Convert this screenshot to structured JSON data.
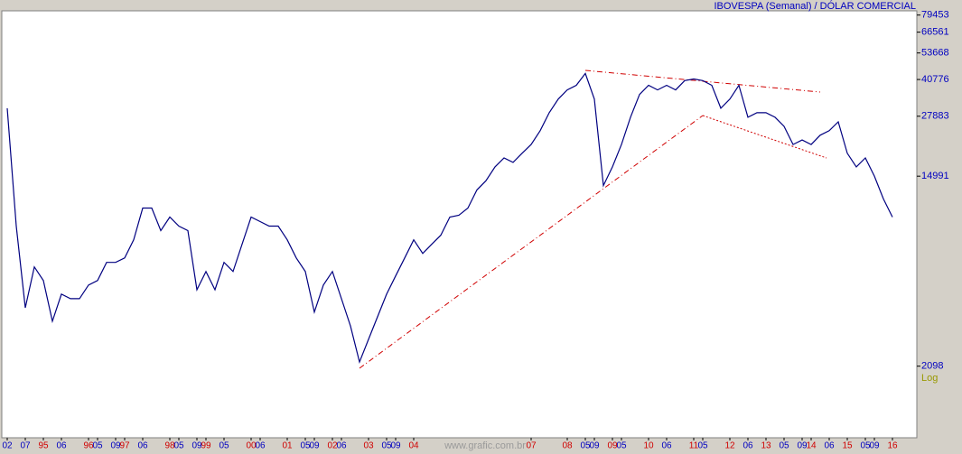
{
  "chart_data": {
    "type": "line",
    "title": "IBOVESPA (Semanal) / DÓLAR COMERCIAL",
    "scale_label": "Log",
    "watermark": "www.grafic.com.br",
    "log_scale": true,
    "grid": false,
    "ylim": [
      1000,
      83000
    ],
    "yticks": [
      79453,
      66561,
      53668,
      40776,
      27883,
      14991,
      2098
    ],
    "categories": [
      "02",
      null,
      "07",
      null,
      "95",
      null,
      "06",
      null,
      null,
      "96",
      "05",
      null,
      "09",
      "97",
      null,
      "06",
      null,
      null,
      "98",
      "05",
      null,
      "09",
      "99",
      null,
      "05",
      null,
      null,
      "00",
      "06",
      null,
      null,
      "01",
      null,
      "05",
      "09",
      null,
      "02",
      "06",
      null,
      null,
      "03",
      null,
      "05",
      "09",
      null,
      "04",
      null,
      null,
      null,
      null,
      null,
      null,
      null,
      null,
      null,
      null,
      null,
      null,
      "07",
      null,
      null,
      null,
      "08",
      null,
      "05",
      "09",
      null,
      "09",
      "05",
      null,
      null,
      "10",
      null,
      "06",
      null,
      null,
      "11",
      "05",
      null,
      null,
      "12",
      null,
      "06",
      null,
      "13",
      null,
      "05",
      null,
      "09",
      "14",
      null,
      "06",
      null,
      "15",
      null,
      "05",
      "09",
      null,
      "16"
    ],
    "category_colors": [
      "#0000c0",
      null,
      "#0000c0",
      null,
      "#d00000",
      null,
      "#0000c0",
      null,
      null,
      "#d00000",
      "#0000c0",
      null,
      "#0000c0",
      "#d00000",
      null,
      "#0000c0",
      null,
      null,
      "#d00000",
      "#0000c0",
      null,
      "#0000c0",
      "#d00000",
      null,
      "#0000c0",
      null,
      null,
      "#d00000",
      "#0000c0",
      null,
      null,
      "#d00000",
      null,
      "#0000c0",
      "#0000c0",
      null,
      "#d00000",
      "#0000c0",
      null,
      null,
      "#d00000",
      null,
      "#0000c0",
      "#0000c0",
      null,
      "#d00000",
      null,
      null,
      null,
      null,
      null,
      null,
      null,
      null,
      null,
      null,
      null,
      null,
      "#d00000",
      null,
      null,
      null,
      "#d00000",
      null,
      "#0000c0",
      "#0000c0",
      null,
      "#d00000",
      "#0000c0",
      null,
      null,
      "#d00000",
      null,
      "#0000c0",
      null,
      null,
      "#d00000",
      "#0000c0",
      null,
      null,
      "#d00000",
      null,
      "#0000c0",
      null,
      "#d00000",
      null,
      "#0000c0",
      null,
      "#0000c0",
      "#d00000",
      null,
      "#0000c0",
      null,
      "#d00000",
      null,
      "#0000c0",
      "#0000c0",
      null,
      "#d00000"
    ],
    "series": [
      {
        "name": "IBOVESPA / DÓLAR",
        "color": "#000080",
        "values": [
          30300,
          8940,
          3840,
          5860,
          5090,
          3340,
          4420,
          4220,
          4220,
          4860,
          5090,
          6140,
          6140,
          6430,
          7760,
          10780,
          10780,
          8530,
          9820,
          8940,
          8530,
          4630,
          5590,
          4630,
          6140,
          5590,
          7410,
          9820,
          9370,
          8940,
          8940,
          7760,
          6430,
          5590,
          3670,
          4860,
          5590,
          4220,
          3180,
          2190,
          2770,
          3500,
          4420,
          5340,
          6430,
          7760,
          6740,
          7410,
          8140,
          9820,
          10000,
          10780,
          13000,
          14300,
          16500,
          18100,
          17300,
          19000,
          20800,
          24000,
          28900,
          33300,
          36600,
          38400,
          43400,
          33300,
          13600,
          16500,
          20800,
          27600,
          34900,
          38400,
          36600,
          38400,
          36600,
          40300,
          41000,
          40300,
          38400,
          30300,
          33300,
          38400,
          27600,
          28900,
          28900,
          27600,
          25100,
          20800,
          21800,
          20800,
          22900,
          24000,
          26300,
          19000,
          16500,
          18100,
          15000,
          11850,
          9820
        ]
      }
    ]
  }
}
